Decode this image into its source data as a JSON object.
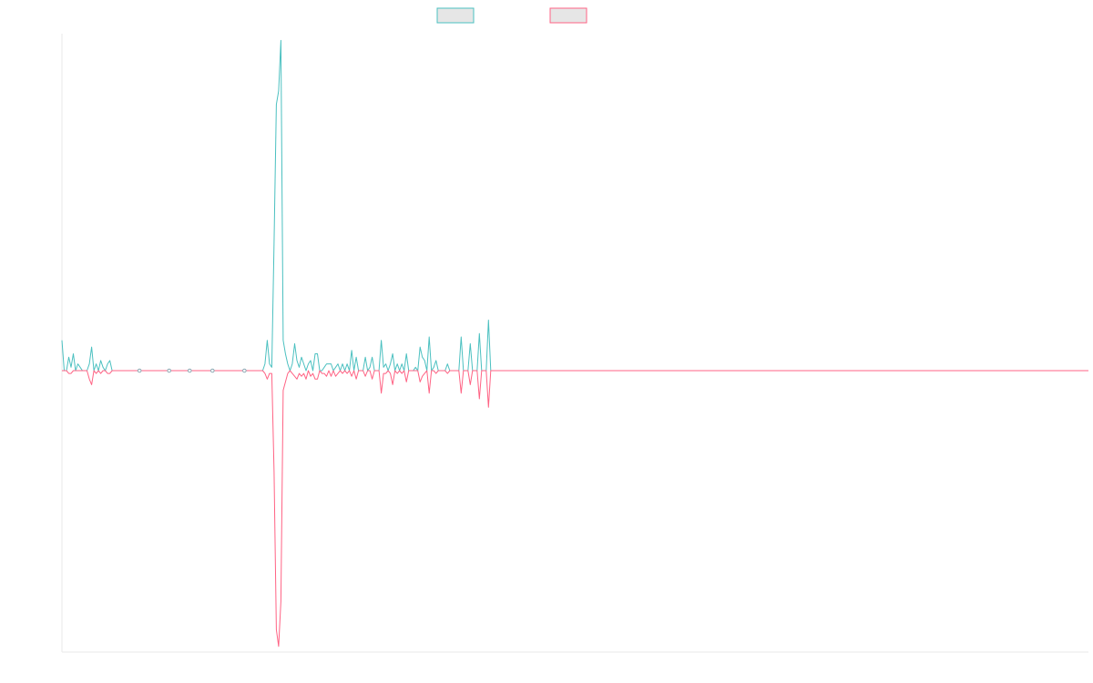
{
  "chart_data": {
    "type": "line",
    "title": "",
    "xlabel": "",
    "ylabel": "",
    "ylim": [
      -100,
      100
    ],
    "grid": false,
    "legend": {
      "placement": "top-center"
    },
    "x_count": 451,
    "series": [
      {
        "color": "#4bc0c0",
        "fill": "#e6e6e6",
        "start_value": 9,
        "points": [
          [
            0,
            9
          ],
          [
            1,
            0
          ],
          [
            2,
            0
          ],
          [
            3,
            4
          ],
          [
            4,
            1
          ],
          [
            5,
            5
          ],
          [
            6,
            0
          ],
          [
            7,
            2
          ],
          [
            8,
            1
          ],
          [
            9,
            0
          ],
          [
            10,
            0
          ],
          [
            11,
            0
          ],
          [
            12,
            2
          ],
          [
            13,
            7
          ],
          [
            14,
            0
          ],
          [
            15,
            2
          ],
          [
            16,
            0
          ],
          [
            17,
            3
          ],
          [
            18,
            1
          ],
          [
            19,
            0
          ],
          [
            20,
            2
          ],
          [
            21,
            3
          ],
          [
            22,
            0
          ],
          [
            23,
            0
          ],
          [
            88,
            0
          ],
          [
            89,
            2
          ],
          [
            90,
            9
          ],
          [
            91,
            2
          ],
          [
            92,
            1
          ],
          [
            93,
            38
          ],
          [
            94,
            79
          ],
          [
            95,
            83
          ],
          [
            96,
            98
          ],
          [
            97,
            9
          ],
          [
            98,
            5
          ],
          [
            99,
            2
          ],
          [
            100,
            0
          ],
          [
            101,
            2
          ],
          [
            102,
            8
          ],
          [
            103,
            3
          ],
          [
            104,
            1
          ],
          [
            105,
            4
          ],
          [
            106,
            2
          ],
          [
            107,
            0
          ],
          [
            108,
            2
          ],
          [
            109,
            3
          ],
          [
            110,
            0
          ],
          [
            111,
            5
          ],
          [
            112,
            5
          ],
          [
            113,
            0
          ],
          [
            114,
            0
          ],
          [
            115,
            1
          ],
          [
            116,
            2
          ],
          [
            117,
            2
          ],
          [
            118,
            2
          ],
          [
            119,
            0
          ],
          [
            120,
            1
          ],
          [
            121,
            2
          ],
          [
            122,
            0
          ],
          [
            123,
            2
          ],
          [
            124,
            0
          ],
          [
            125,
            2
          ],
          [
            126,
            0
          ],
          [
            127,
            6
          ],
          [
            128,
            0
          ],
          [
            129,
            4
          ],
          [
            130,
            0
          ],
          [
            131,
            0
          ],
          [
            132,
            0
          ],
          [
            133,
            4
          ],
          [
            134,
            0
          ],
          [
            135,
            1
          ],
          [
            136,
            4
          ],
          [
            137,
            0
          ],
          [
            138,
            0
          ],
          [
            139,
            0
          ],
          [
            140,
            9
          ],
          [
            141,
            1
          ],
          [
            142,
            2
          ],
          [
            143,
            0
          ],
          [
            144,
            2
          ],
          [
            145,
            5
          ],
          [
            146,
            0
          ],
          [
            147,
            2
          ],
          [
            148,
            0
          ],
          [
            149,
            2
          ],
          [
            150,
            0
          ],
          [
            151,
            5
          ],
          [
            152,
            0
          ],
          [
            153,
            0
          ],
          [
            154,
            0
          ],
          [
            155,
            1
          ],
          [
            156,
            0
          ],
          [
            157,
            7
          ],
          [
            158,
            4
          ],
          [
            159,
            3
          ],
          [
            160,
            0
          ],
          [
            161,
            10
          ],
          [
            162,
            0
          ],
          [
            163,
            1
          ],
          [
            164,
            3
          ],
          [
            165,
            0
          ],
          [
            166,
            0
          ],
          [
            167,
            0
          ],
          [
            168,
            0
          ],
          [
            169,
            2
          ],
          [
            170,
            0
          ],
          [
            171,
            0
          ],
          [
            172,
            0
          ],
          [
            173,
            0
          ],
          [
            174,
            0
          ],
          [
            175,
            10
          ],
          [
            176,
            0
          ],
          [
            177,
            0
          ],
          [
            178,
            0
          ],
          [
            179,
            8
          ],
          [
            180,
            0
          ],
          [
            181,
            0
          ],
          [
            182,
            0
          ],
          [
            183,
            11
          ],
          [
            184,
            0
          ],
          [
            185,
            0
          ],
          [
            186,
            0
          ],
          [
            187,
            15
          ],
          [
            188,
            0
          ],
          [
            450,
            0
          ]
        ]
      },
      {
        "color": "#ff6384",
        "fill": "#e6e6e6",
        "start_value": 0,
        "points": [
          [
            0,
            0
          ],
          [
            1,
            0
          ],
          [
            2,
            0
          ],
          [
            3,
            -1
          ],
          [
            4,
            -1
          ],
          [
            5,
            0
          ],
          [
            6,
            0
          ],
          [
            7,
            0
          ],
          [
            8,
            0
          ],
          [
            9,
            0
          ],
          [
            10,
            0
          ],
          [
            11,
            0
          ],
          [
            12,
            -3
          ],
          [
            13,
            -5
          ],
          [
            14,
            0
          ],
          [
            15,
            -1
          ],
          [
            16,
            0
          ],
          [
            17,
            -1
          ],
          [
            18,
            0
          ],
          [
            19,
            0
          ],
          [
            20,
            -1
          ],
          [
            21,
            -1
          ],
          [
            22,
            0
          ],
          [
            23,
            0
          ],
          [
            88,
            0
          ],
          [
            89,
            -1
          ],
          [
            90,
            -3
          ],
          [
            91,
            -1
          ],
          [
            92,
            -1
          ],
          [
            93,
            -36
          ],
          [
            94,
            -92
          ],
          [
            95,
            -98
          ],
          [
            96,
            -82
          ],
          [
            97,
            -7
          ],
          [
            98,
            -4
          ],
          [
            99,
            -1
          ],
          [
            100,
            0
          ],
          [
            101,
            -1
          ],
          [
            102,
            -2
          ],
          [
            103,
            -3
          ],
          [
            104,
            -1
          ],
          [
            105,
            -2
          ],
          [
            106,
            -1
          ],
          [
            107,
            -3
          ],
          [
            108,
            0
          ],
          [
            109,
            -2
          ],
          [
            110,
            -1
          ],
          [
            111,
            -3
          ],
          [
            112,
            -3
          ],
          [
            113,
            0
          ],
          [
            114,
            -1
          ],
          [
            115,
            -1
          ],
          [
            116,
            -2
          ],
          [
            117,
            0
          ],
          [
            118,
            -2
          ],
          [
            119,
            0
          ],
          [
            120,
            -2
          ],
          [
            121,
            -1
          ],
          [
            122,
            0
          ],
          [
            123,
            -1
          ],
          [
            124,
            0
          ],
          [
            125,
            -1
          ],
          [
            126,
            0
          ],
          [
            127,
            -2
          ],
          [
            128,
            0
          ],
          [
            129,
            -3
          ],
          [
            130,
            0
          ],
          [
            131,
            0
          ],
          [
            132,
            0
          ],
          [
            133,
            -2
          ],
          [
            134,
            0
          ],
          [
            135,
            0
          ],
          [
            136,
            -3
          ],
          [
            137,
            0
          ],
          [
            138,
            0
          ],
          [
            139,
            0
          ],
          [
            140,
            -8
          ],
          [
            141,
            -1
          ],
          [
            142,
            -1
          ],
          [
            143,
            0
          ],
          [
            144,
            -1
          ],
          [
            145,
            -5
          ],
          [
            146,
            0
          ],
          [
            147,
            -1
          ],
          [
            148,
            0
          ],
          [
            149,
            -1
          ],
          [
            150,
            0
          ],
          [
            151,
            -4
          ],
          [
            152,
            0
          ],
          [
            153,
            0
          ],
          [
            154,
            0
          ],
          [
            155,
            0
          ],
          [
            156,
            0
          ],
          [
            157,
            -4
          ],
          [
            158,
            -2
          ],
          [
            159,
            -1
          ],
          [
            160,
            0
          ],
          [
            161,
            -8
          ],
          [
            162,
            0
          ],
          [
            163,
            0
          ],
          [
            164,
            -1
          ],
          [
            165,
            0
          ],
          [
            166,
            0
          ],
          [
            167,
            0
          ],
          [
            168,
            0
          ],
          [
            169,
            -1
          ],
          [
            170,
            0
          ],
          [
            171,
            0
          ],
          [
            172,
            0
          ],
          [
            173,
            0
          ],
          [
            174,
            0
          ],
          [
            175,
            -8
          ],
          [
            176,
            0
          ],
          [
            177,
            0
          ],
          [
            178,
            0
          ],
          [
            179,
            -5
          ],
          [
            180,
            0
          ],
          [
            181,
            0
          ],
          [
            182,
            0
          ],
          [
            183,
            -10
          ],
          [
            184,
            0
          ],
          [
            185,
            0
          ],
          [
            186,
            0
          ],
          [
            187,
            -13
          ],
          [
            188,
            0
          ],
          [
            450,
            0
          ]
        ]
      }
    ],
    "marker_x": [
      34,
      47,
      56,
      66,
      80
    ]
  }
}
